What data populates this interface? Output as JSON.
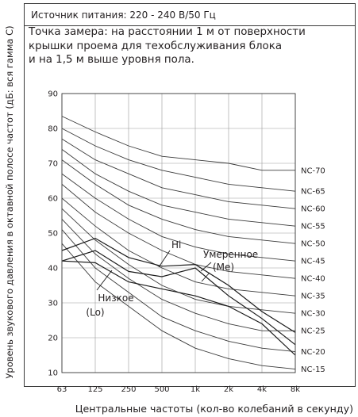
{
  "power_supply": "Источник питания: 220 - 240 В/50 Гц",
  "measurement_note": [
    "Точка замера: на расстоянии 1 м от поверхности",
    "крышки проема для техобслуживания блока",
    "и на 1,5 м выше уровня пола."
  ],
  "chart_data": {
    "type": "line",
    "xlabel": "Центральные частоты (кол-во колебаний в секунду)",
    "ylabel": "Уровень звукового давления в октавной полосе частот (дБ: вся гамма С)",
    "categories": [
      "63",
      "125",
      "250",
      "500",
      "1k",
      "2k",
      "4k",
      "8k"
    ],
    "y_ticks": [
      10,
      20,
      30,
      40,
      50,
      60,
      70,
      80,
      90
    ],
    "ylim": [
      10,
      90
    ],
    "grid": true,
    "nc_curves": [
      {
        "name": "NC-70",
        "values": [
          83.5,
          79,
          75,
          72,
          71,
          70,
          68,
          68
        ]
      },
      {
        "name": "NC-65",
        "values": [
          80,
          75,
          71,
          68,
          66,
          64,
          63,
          62
        ]
      },
      {
        "name": "NC-60",
        "values": [
          77,
          71,
          67,
          63,
          61,
          59,
          58,
          57
        ]
      },
      {
        "name": "NC-55",
        "values": [
          74,
          67,
          62,
          58,
          56,
          54,
          53,
          52
        ]
      },
      {
        "name": "NC-50",
        "values": [
          71,
          64,
          58,
          54,
          51,
          49,
          48,
          47
        ]
      },
      {
        "name": "NC-45",
        "values": [
          67,
          60,
          54,
          49,
          46,
          44,
          43,
          42
        ]
      },
      {
        "name": "NC-40",
        "values": [
          64,
          56,
          50,
          45,
          41,
          39,
          38,
          37
        ]
      },
      {
        "name": "NC-35",
        "values": [
          60,
          52,
          45,
          40,
          36,
          34,
          33,
          32
        ]
      },
      {
        "name": "NC-30",
        "values": [
          57,
          48,
          41,
          35,
          31,
          29,
          28,
          27
        ]
      },
      {
        "name": "NC-25",
        "values": [
          54,
          44,
          37,
          31,
          27,
          24,
          22,
          22
        ]
      },
      {
        "name": "NC-20",
        "values": [
          51,
          40,
          33,
          26,
          22,
          19,
          17,
          16
        ]
      },
      {
        "name": "NC-15",
        "values": [
          47,
          36,
          29,
          22,
          17,
          14,
          12,
          11
        ]
      }
    ],
    "measured_series": [
      {
        "name": "Hi",
        "values": [
          45,
          48.5,
          43,
          40.5,
          41,
          35,
          27.5,
          21.5
        ]
      },
      {
        "name": "Умеренное (Me)",
        "values": [
          42,
          45,
          39,
          37.5,
          40,
          32,
          25.5,
          18
        ]
      },
      {
        "name": "Низкое (Lo)",
        "values": [
          42,
          41.5,
          36,
          34,
          32,
          29,
          24,
          15
        ]
      }
    ],
    "annotations": [
      {
        "text": "Hi"
      },
      {
        "text": "Умеренное"
      },
      {
        "text": "(Me)"
      },
      {
        "text": "Низкое"
      },
      {
        "text": "(Lo)"
      }
    ]
  }
}
